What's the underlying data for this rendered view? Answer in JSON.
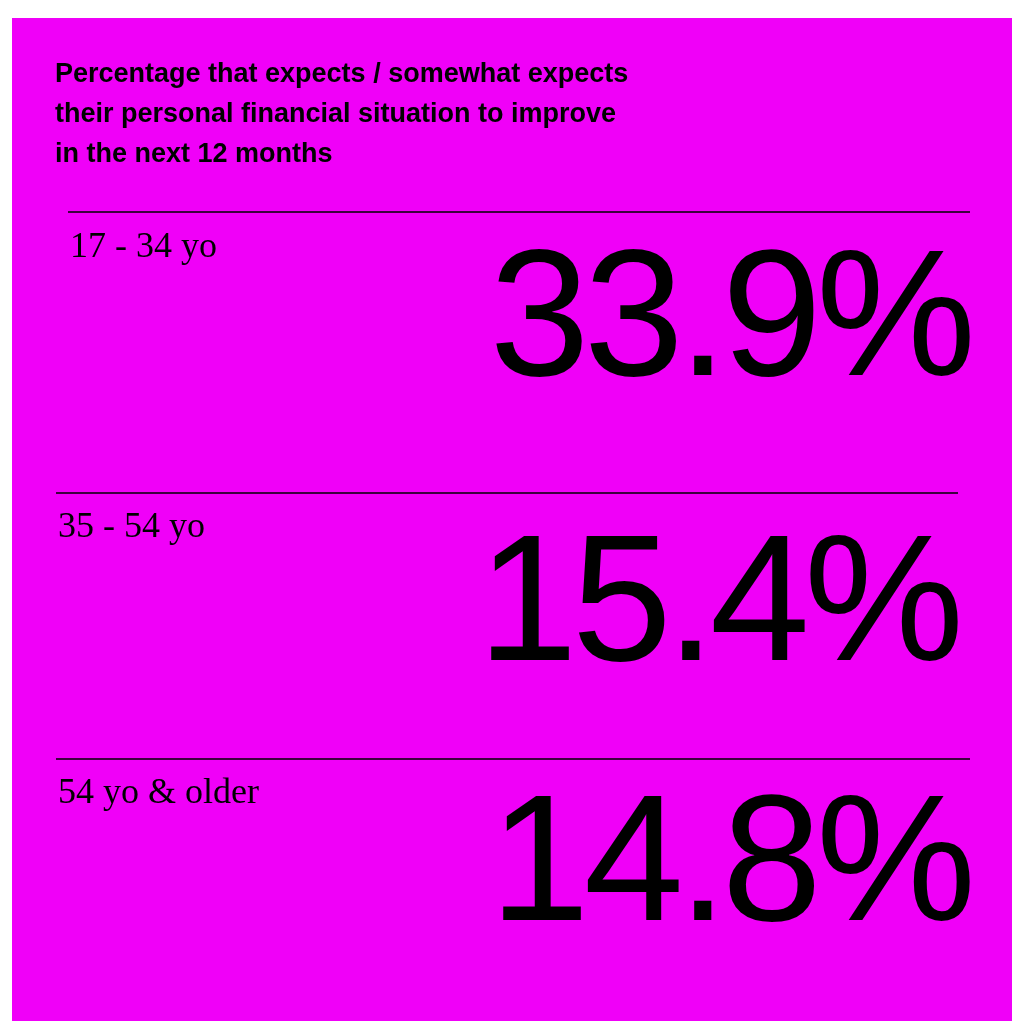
{
  "chart_data": {
    "type": "other",
    "title": "Percentage that expects / somewhat expects their personal financial situation to improve in the next 12 months",
    "categories": [
      "17 - 34 yo",
      "35 - 54 yo",
      "54 yo & older"
    ],
    "values": [
      33.9,
      15.4,
      14.8
    ],
    "value_labels": [
      "33.9%",
      "15.4%",
      "14.8%"
    ],
    "color": "#000000"
  }
}
